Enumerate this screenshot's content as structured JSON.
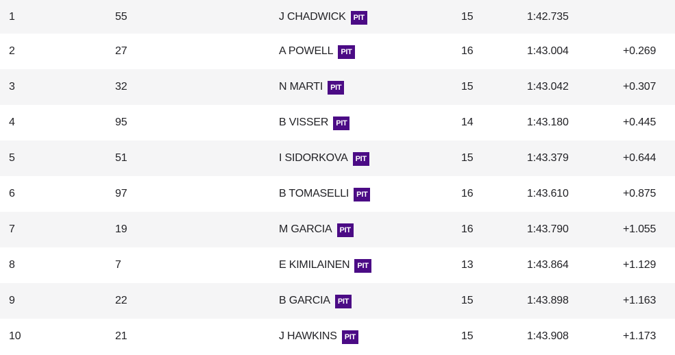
{
  "pit_label": "PIT",
  "colors": {
    "pit_badge": "#4b0b85",
    "row_alt": "#f5f5f6"
  },
  "rows": [
    {
      "pos": "1",
      "number": "55",
      "driver": "J CHADWICK",
      "laps": "15",
      "time": "1:42.735",
      "gap": ""
    },
    {
      "pos": "2",
      "number": "27",
      "driver": "A POWELL",
      "laps": "16",
      "time": "1:43.004",
      "gap": "+0.269"
    },
    {
      "pos": "3",
      "number": "32",
      "driver": "N MARTI",
      "laps": "15",
      "time": "1:43.042",
      "gap": "+0.307"
    },
    {
      "pos": "4",
      "number": "95",
      "driver": "B VISSER",
      "laps": "14",
      "time": "1:43.180",
      "gap": "+0.445"
    },
    {
      "pos": "5",
      "number": "51",
      "driver": "I SIDORKOVA",
      "laps": "15",
      "time": "1:43.379",
      "gap": "+0.644"
    },
    {
      "pos": "6",
      "number": "97",
      "driver": "B TOMASELLI",
      "laps": "16",
      "time": "1:43.610",
      "gap": "+0.875"
    },
    {
      "pos": "7",
      "number": "19",
      "driver": "M GARCIA",
      "laps": "16",
      "time": "1:43.790",
      "gap": "+1.055"
    },
    {
      "pos": "8",
      "number": "7",
      "driver": "E KIMILAINEN",
      "laps": "13",
      "time": "1:43.864",
      "gap": "+1.129"
    },
    {
      "pos": "9",
      "number": "22",
      "driver": "B GARCIA",
      "laps": "15",
      "time": "1:43.898",
      "gap": "+1.163"
    },
    {
      "pos": "10",
      "number": "21",
      "driver": "J HAWKINS",
      "laps": "15",
      "time": "1:43.908",
      "gap": "+1.173"
    }
  ]
}
